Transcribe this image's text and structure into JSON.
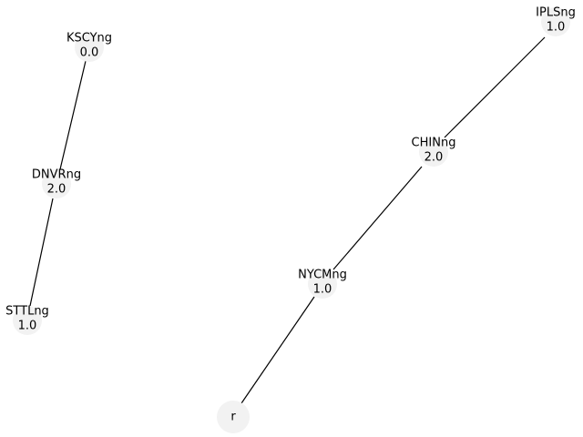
{
  "nodes": [
    {
      "id": "KSCYng",
      "name": "KSCYng",
      "value": "0.0"
    },
    {
      "id": "DNVRng",
      "name": "DNVRng",
      "value": "2.0"
    },
    {
      "id": "STTLng",
      "name": "STTLng",
      "value": "1.0"
    },
    {
      "id": "IPLSng",
      "name": "IPLSng",
      "value": "1.0"
    },
    {
      "id": "CHINng",
      "name": "CHINng",
      "value": "2.0"
    },
    {
      "id": "NYCMng",
      "name": "NYCMng",
      "value": "1.0"
    },
    {
      "id": "r",
      "name": "r",
      "value": ""
    }
  ],
  "edges": [
    {
      "source": "KSCYng",
      "target": "DNVRng"
    },
    {
      "source": "DNVRng",
      "target": "STTLng"
    },
    {
      "source": "IPLSng",
      "target": "CHINng"
    },
    {
      "source": "CHINng",
      "target": "NYCMng"
    },
    {
      "source": "NYCMng",
      "target": "r"
    }
  ],
  "colors": {
    "node_fill": "#f2f2f2",
    "edge": "#000000",
    "text": "#000000"
  }
}
